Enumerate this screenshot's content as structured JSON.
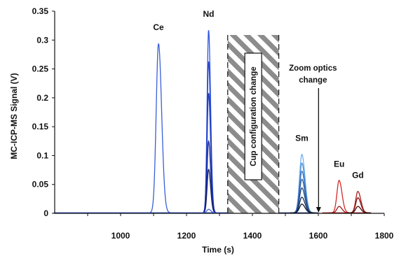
{
  "chart_data": {
    "type": "line",
    "title": "",
    "xlabel": "Time (s)",
    "ylabel": "MC-ICP-MS Signal (V)",
    "xlim": [
      800,
      1800
    ],
    "ylim": [
      0,
      0.35
    ],
    "x_ticks": [
      "1000",
      "1200",
      "1400",
      "1600",
      "1800"
    ],
    "y_ticks": [
      "0",
      "0.05",
      "0.1",
      "0.15",
      "0.2",
      "0.25",
      "0.3",
      "0.35"
    ],
    "grid": false,
    "legend": "none",
    "hatched_region": {
      "x_start": 1325,
      "x_end": 1480,
      "label": "Cup configuration change"
    },
    "annotation": {
      "text_line1": "Zoom optics",
      "text_line2": "change",
      "x": 1605
    },
    "peaks": [
      {
        "element": "Ce",
        "x_center": 1115,
        "color": "#3a5fd6",
        "series": [
          {
            "values": [
              0.293
            ],
            "width": 7
          }
        ]
      },
      {
        "element": "Nd",
        "x_center": 1267,
        "color": "#1e3fbf",
        "series": [
          {
            "values": [
              0.316
            ],
            "width": 4.5,
            "color": "#2f55e0"
          },
          {
            "values": [
              0.262
            ],
            "width": 4.5,
            "color": "#2747cf"
          },
          {
            "values": [
              0.207
            ],
            "width": 4.5,
            "color": "#1e3bb8"
          },
          {
            "values": [
              0.124
            ],
            "width": 4.5,
            "color": "#16299a"
          },
          {
            "values": [
              0.075
            ],
            "width": 4.5,
            "color": "#141e5e"
          },
          {
            "values": [
              0.006
            ],
            "width": 5,
            "color": "#4466dd"
          }
        ]
      },
      {
        "element": "Sm",
        "x_center": 1550,
        "color": "#4a86d6",
        "series": [
          {
            "values": [
              0.101
            ],
            "width": 7,
            "color": "#6fb0ee"
          },
          {
            "values": [
              0.086
            ],
            "width": 7,
            "color": "#4e8fd8"
          },
          {
            "values": [
              0.072
            ],
            "width": 7,
            "color": "#3a74c4"
          },
          {
            "values": [
              0.058
            ],
            "width": 7,
            "color": "#2d5ea8"
          },
          {
            "values": [
              0.043
            ],
            "width": 7,
            "color": "#24487f"
          },
          {
            "values": [
              0.027
            ],
            "width": 7,
            "color": "#1a2e55"
          },
          {
            "values": [
              0.015
            ],
            "width": 7,
            "color": "#0f1a30"
          }
        ]
      },
      {
        "element": "Eu",
        "x_center": 1663,
        "color": "#d42a2a",
        "series": [
          {
            "values": [
              0.056
            ],
            "width": 6.5,
            "color": "#d42a2a"
          },
          {
            "values": [
              0.011
            ],
            "width": 6.5,
            "color": "#a01818"
          }
        ]
      },
      {
        "element": "Gd",
        "x_center": 1720,
        "color": "#8a1010",
        "series": [
          {
            "values": [
              0.037
            ],
            "width": 6.5,
            "color": "#b01c1c"
          },
          {
            "values": [
              0.026
            ],
            "width": 6.5,
            "color": "#8a1414"
          },
          {
            "values": [
              0.011
            ],
            "width": 6.5,
            "color": "#4a0a0a"
          }
        ]
      }
    ]
  }
}
